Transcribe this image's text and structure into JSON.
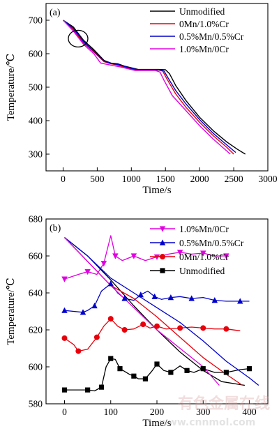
{
  "chart_data": [
    {
      "type": "line",
      "panel_label": "(a)",
      "xlabel": "Time/s",
      "ylabel": "Temperature/℃",
      "xlim": [
        -250,
        3000
      ],
      "ylim": [
        250,
        750
      ],
      "xticks": [
        0,
        500,
        1000,
        1500,
        2000,
        2500,
        3000
      ],
      "yticks": [
        300,
        400,
        500,
        600,
        700
      ],
      "grid": false,
      "legend_position": "top-right",
      "annotations": [
        "circle around 200 s, 640 ℃"
      ],
      "series": [
        {
          "name": "Unmodified",
          "color": "#000000",
          "marker": "none",
          "points": [
            [
              0,
              700
            ],
            [
              150,
              680
            ],
            [
              300,
              640
            ],
            [
              450,
              612
            ],
            [
              600,
              580
            ],
            [
              700,
              572
            ],
            [
              800,
              570
            ],
            [
              900,
              563
            ],
            [
              1000,
              558
            ],
            [
              1100,
              553
            ],
            [
              1200,
              553
            ],
            [
              1300,
              553
            ],
            [
              1400,
              553
            ],
            [
              1500,
              552
            ],
            [
              1560,
              540
            ],
            [
              1650,
              505
            ],
            [
              1800,
              460
            ],
            [
              2000,
              410
            ],
            [
              2200,
              370
            ],
            [
              2400,
              336
            ],
            [
              2550,
              315
            ],
            [
              2670,
              300
            ]
          ]
        },
        {
          "name": "0Mn/1.0%Cr",
          "color": "#e8000b",
          "marker": "none",
          "points": [
            [
              0,
              700
            ],
            [
              150,
              672
            ],
            [
              300,
              632
            ],
            [
              450,
              605
            ],
            [
              600,
              576
            ],
            [
              700,
              570
            ],
            [
              800,
              566
            ],
            [
              900,
              560
            ],
            [
              1000,
              554
            ],
            [
              1100,
              551
            ],
            [
              1200,
              551
            ],
            [
              1300,
              551
            ],
            [
              1400,
              551
            ],
            [
              1460,
              548
            ],
            [
              1520,
              525
            ],
            [
              1650,
              480
            ],
            [
              1800,
              440
            ],
            [
              2000,
              395
            ],
            [
              2200,
              355
            ],
            [
              2400,
              320
            ],
            [
              2500,
              300
            ]
          ]
        },
        {
          "name": "0.5%Mn/0.5%Cr",
          "color": "#0000cc",
          "marker": "none",
          "points": [
            [
              0,
              700
            ],
            [
              150,
              676
            ],
            [
              300,
              636
            ],
            [
              450,
              608
            ],
            [
              600,
              578
            ],
            [
              700,
              571
            ],
            [
              800,
              568
            ],
            [
              900,
              562
            ],
            [
              1000,
              556
            ],
            [
              1100,
              552
            ],
            [
              1200,
              552
            ],
            [
              1300,
              552
            ],
            [
              1400,
              552
            ],
            [
              1480,
              548
            ],
            [
              1540,
              527
            ],
            [
              1650,
              490
            ],
            [
              1800,
              450
            ],
            [
              2000,
              403
            ],
            [
              2200,
              362
            ],
            [
              2400,
              327
            ],
            [
              2530,
              305
            ]
          ]
        },
        {
          "name": "1.0%Mn/0Cr",
          "color": "#e000e0",
          "marker": "none",
          "points": [
            [
              0,
              700
            ],
            [
              150,
              668
            ],
            [
              300,
              628
            ],
            [
              450,
              600
            ],
            [
              550,
              572
            ],
            [
              650,
              568
            ],
            [
              750,
              564
            ],
            [
              850,
              560
            ],
            [
              950,
              555
            ],
            [
              1050,
              550
            ],
            [
              1150,
              550
            ],
            [
              1250,
              550
            ],
            [
              1350,
              550
            ],
            [
              1420,
              545
            ],
            [
              1480,
              520
            ],
            [
              1600,
              475
            ],
            [
              1800,
              430
            ],
            [
              2000,
              385
            ],
            [
              2200,
              345
            ],
            [
              2350,
              318
            ],
            [
              2450,
              300
            ]
          ]
        }
      ]
    },
    {
      "type": "line",
      "panel_label": "(b)",
      "xlabel": "Time/s",
      "ylabel": "Temperature/℃",
      "xlim": [
        -40,
        440
      ],
      "ylim": [
        580,
        680
      ],
      "xticks": [
        0,
        100,
        200,
        300,
        400
      ],
      "yticks": [
        580,
        600,
        620,
        640,
        660,
        680
      ],
      "grid": false,
      "legend_position": "top-right",
      "series": [
        {
          "name": "1.0%Mn/0Cr",
          "color": "#e000e0",
          "marker": "triangle-down",
          "role": "first derivative",
          "points": [
            [
              0,
              647.5
            ],
            [
              30,
              650
            ],
            [
              50,
              651.5
            ],
            [
              70,
              650
            ],
            [
              85,
              656
            ],
            [
              100,
              671
            ],
            [
              110,
              660
            ],
            [
              125,
              657.5
            ],
            [
              150,
              660
            ],
            [
              175,
              657.5
            ],
            [
              200,
              659.5
            ],
            [
              225,
              661
            ],
            [
              250,
              662
            ],
            [
              275,
              661
            ],
            [
              300,
              661.5
            ],
            [
              325,
              660
            ],
            [
              350,
              660
            ]
          ]
        },
        {
          "name": "0.5%Mn/0.5%Cr",
          "color": "#0000cc",
          "marker": "triangle-up",
          "role": "first derivative",
          "points": [
            [
              0,
              630.5
            ],
            [
              20,
              630
            ],
            [
              40,
              629.5
            ],
            [
              50,
              630.5
            ],
            [
              65,
              633
            ],
            [
              80,
              641
            ],
            [
              100,
              645
            ],
            [
              115,
              640
            ],
            [
              130,
              637
            ],
            [
              150,
              636
            ],
            [
              165,
              639
            ],
            [
              180,
              641
            ],
            [
              195,
              638
            ],
            [
              210,
              636.5
            ],
            [
              230,
              637.5
            ],
            [
              250,
              638
            ],
            [
              275,
              637
            ],
            [
              300,
              637.5
            ],
            [
              325,
              636
            ],
            [
              350,
              635.5
            ],
            [
              380,
              635.5
            ],
            [
              400,
              635.5
            ]
          ]
        },
        {
          "name": "0Mn/1.0%Cr",
          "color": "#e8000b",
          "marker": "circle",
          "role": "first derivative",
          "points": [
            [
              0,
              615.5
            ],
            [
              20,
              612
            ],
            [
              30,
              608.5
            ],
            [
              50,
              609.5
            ],
            [
              70,
              616
            ],
            [
              85,
              622
            ],
            [
              100,
              626
            ],
            [
              115,
              622
            ],
            [
              130,
              620
            ],
            [
              150,
              620.5
            ],
            [
              170,
              623
            ],
            [
              185,
              621
            ],
            [
              200,
              622
            ],
            [
              220,
              620.5
            ],
            [
              250,
              621
            ],
            [
              275,
              621.5
            ],
            [
              300,
              621
            ],
            [
              325,
              620.5
            ],
            [
              350,
              620.5
            ],
            [
              380,
              619.5
            ]
          ]
        },
        {
          "name": "Unmodified",
          "color": "#000000",
          "marker": "square",
          "role": "first derivative",
          "points": [
            [
              0,
              587.5
            ],
            [
              30,
              587.5
            ],
            [
              50,
              587.5
            ],
            [
              65,
              587
            ],
            [
              80,
              589
            ],
            [
              90,
              600
            ],
            [
              100,
              604.5
            ],
            [
              110,
              604
            ],
            [
              120,
              599
            ],
            [
              140,
              596
            ],
            [
              150,
              595
            ],
            [
              160,
              593.5
            ],
            [
              175,
              593.5
            ],
            [
              190,
              598
            ],
            [
              200,
              601.5
            ],
            [
              215,
              598
            ],
            [
              230,
              597
            ],
            [
              250,
              600.5
            ],
            [
              265,
              598
            ],
            [
              280,
              597
            ],
            [
              300,
              599
            ],
            [
              325,
              597
            ],
            [
              350,
              597
            ],
            [
              380,
              598.5
            ],
            [
              400,
              599
            ]
          ]
        },
        {
          "role": "cooling curve",
          "color": "#000000",
          "marker": "none",
          "points": [
            [
              0,
              670
            ],
            [
              50,
              660
            ],
            [
              100,
              647
            ],
            [
              150,
              633
            ],
            [
              200,
              620
            ],
            [
              250,
              608
            ],
            [
              300,
              598
            ],
            [
              340,
              592
            ],
            [
              390,
              590
            ]
          ]
        },
        {
          "role": "cooling curve",
          "color": "#e8000b",
          "marker": "none",
          "points": [
            [
              0,
              670
            ],
            [
              50,
              657
            ],
            [
              100,
              644
            ],
            [
              150,
              637
            ],
            [
              200,
              627
            ],
            [
              250,
              616
            ],
            [
              300,
              605
            ],
            [
              350,
              596
            ],
            [
              385,
              590
            ]
          ]
        },
        {
          "role": "cooling curve",
          "color": "#0000cc",
          "marker": "none",
          "points": [
            [
              0,
              670
            ],
            [
              50,
              660
            ],
            [
              100,
              648
            ],
            [
              150,
              640
            ],
            [
              200,
              632
            ],
            [
              250,
              624
            ],
            [
              300,
              614
            ],
            [
              350,
              603
            ],
            [
              400,
              594
            ],
            [
              420,
              590
            ]
          ]
        },
        {
          "role": "cooling curve",
          "color": "#e000e0",
          "marker": "none",
          "points": [
            [
              0,
              670
            ],
            [
              50,
              657
            ],
            [
              100,
              644
            ],
            [
              150,
              632
            ],
            [
              200,
              620
            ],
            [
              250,
              610
            ],
            [
              300,
              600
            ],
            [
              335,
              590
            ]
          ]
        }
      ]
    }
  ],
  "watermark": {
    "chinese": "有色金属在线",
    "url": "www.cnnmol.com"
  }
}
